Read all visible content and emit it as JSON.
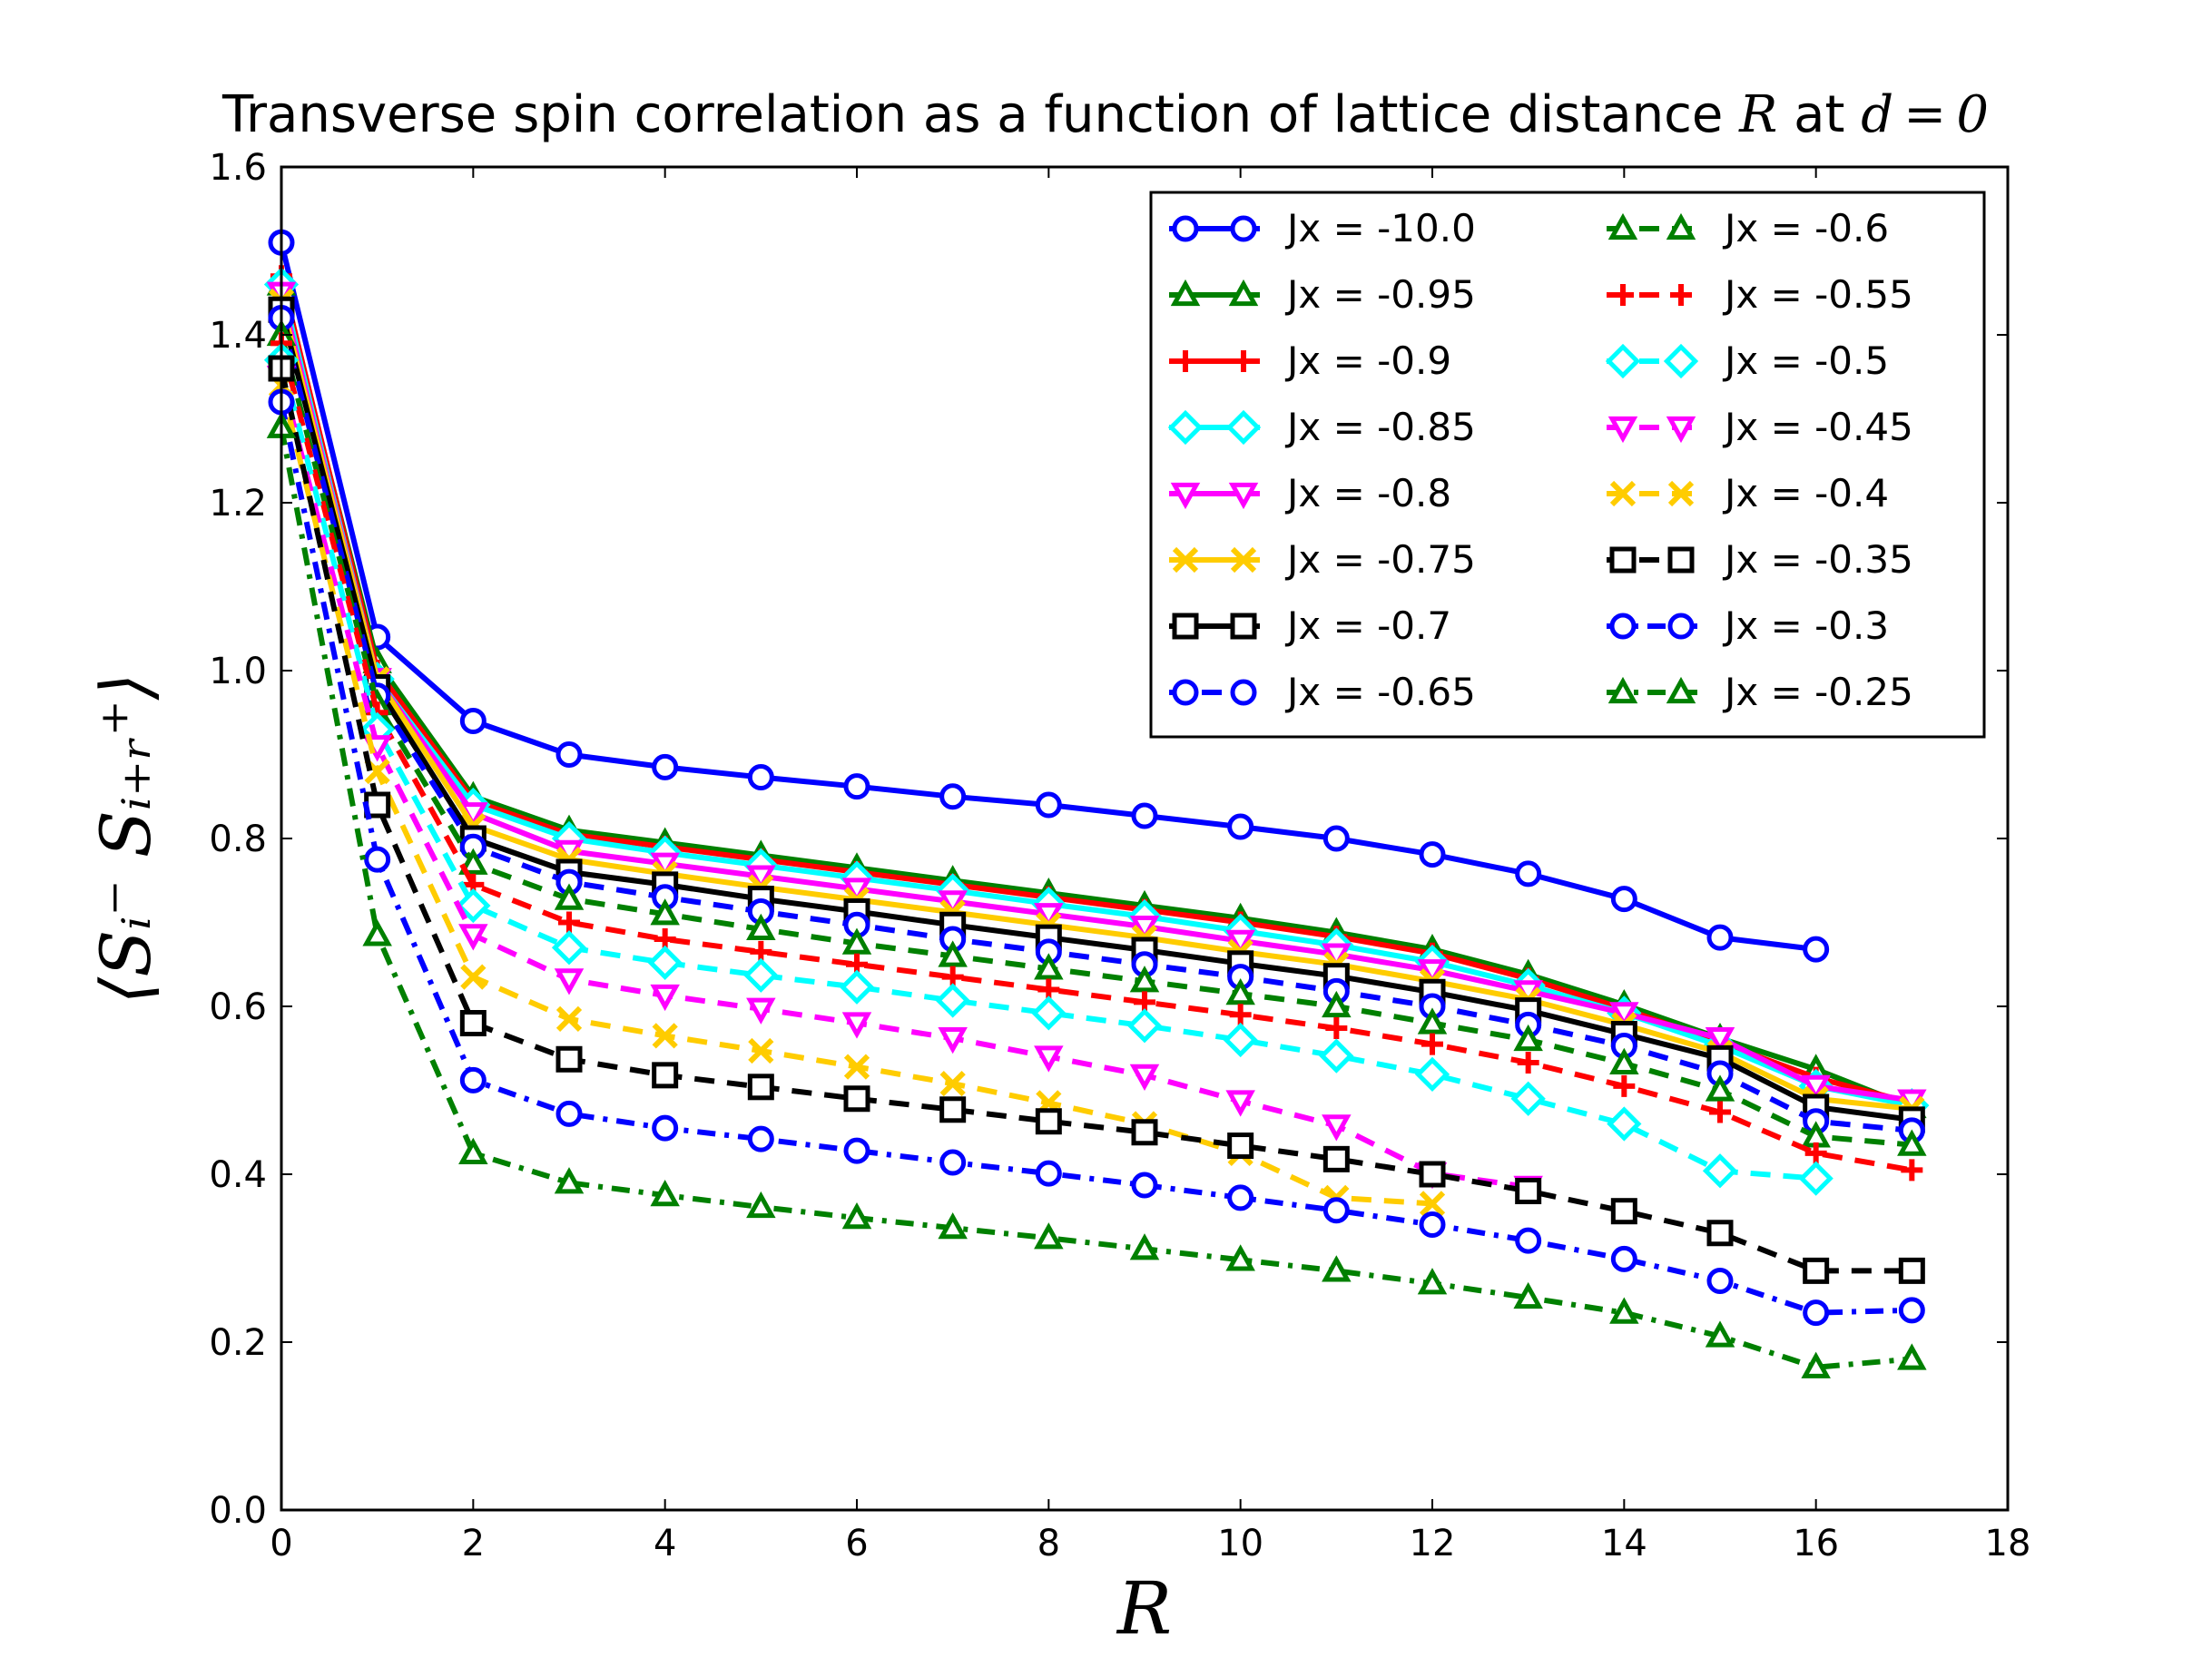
{
  "chart_data": {
    "type": "line",
    "title_prefix": "Transverse spin correlation as a function of lattice distance ",
    "title_var": "R",
    "title_mid": " at ",
    "title_eq": "d = 0",
    "xlabel": "R",
    "ylabel": "⟨Sᵢ⁻ Sᵢ₊ᵣ⁺⟩",
    "xlim": [
      0,
      18
    ],
    "ylim": [
      0.0,
      1.6
    ],
    "xticks": [
      "0",
      "2",
      "4",
      "6",
      "8",
      "10",
      "12",
      "14",
      "16",
      "18"
    ],
    "yticks": [
      "0.0",
      "0.2",
      "0.4",
      "0.6",
      "0.8",
      "1.0",
      "1.2",
      "1.4",
      "1.6"
    ],
    "grid": false,
    "legend_position": "top-right",
    "legend_columns": 2,
    "series": [
      {
        "name": "Jx = -10.0",
        "color": "#0000ff",
        "marker": "circle",
        "dash": "solid",
        "x": [
          0,
          1,
          2,
          3,
          4,
          5,
          6,
          7,
          8,
          9,
          10,
          11,
          12,
          13,
          14,
          15,
          16
        ],
        "values": [
          1.51,
          1.04,
          0.94,
          0.9,
          0.885,
          0.873,
          0.862,
          0.85,
          0.84,
          0.827,
          0.814,
          0.8,
          0.781,
          0.758,
          0.728,
          0.682,
          0.668
        ]
      },
      {
        "name": "Jx = -0.95",
        "color": "#008000",
        "marker": "triangle-up",
        "dash": "solid",
        "x": [
          0,
          1,
          2,
          3,
          4,
          5,
          6,
          7,
          8,
          9,
          10,
          11,
          12,
          13,
          14,
          15,
          16,
          17
        ],
        "values": [
          1.46,
          1.01,
          0.85,
          0.81,
          0.795,
          0.78,
          0.765,
          0.75,
          0.735,
          0.72,
          0.705,
          0.688,
          0.668,
          0.638,
          0.602,
          0.562,
          0.525,
          0.48
        ]
      },
      {
        "name": "Jx = -0.9",
        "color": "#ff0000",
        "marker": "plus",
        "dash": "solid",
        "x": [
          0,
          1,
          2,
          3,
          4,
          5,
          6,
          7,
          8,
          9,
          10,
          11,
          12,
          13,
          14,
          15,
          16,
          17
        ],
        "values": [
          1.47,
          1.0,
          0.845,
          0.805,
          0.79,
          0.775,
          0.76,
          0.745,
          0.73,
          0.715,
          0.7,
          0.683,
          0.663,
          0.633,
          0.597,
          0.557,
          0.515,
          0.485
        ]
      },
      {
        "name": "Jx = -0.85",
        "color": "#00ffff",
        "marker": "diamond",
        "dash": "solid",
        "x": [
          0,
          1,
          2,
          3,
          4,
          5,
          6,
          7,
          8,
          9,
          10,
          11,
          12,
          13,
          14,
          15,
          16,
          17
        ],
        "values": [
          1.46,
          0.99,
          0.84,
          0.8,
          0.783,
          0.768,
          0.753,
          0.738,
          0.722,
          0.707,
          0.69,
          0.673,
          0.653,
          0.625,
          0.592,
          0.553,
          0.505,
          0.482
        ]
      },
      {
        "name": "Jx = -0.8",
        "color": "#ff00ff",
        "marker": "triangle-down",
        "dash": "solid",
        "x": [
          0,
          1,
          2,
          3,
          4,
          5,
          6,
          7,
          8,
          9,
          10,
          11,
          12,
          13,
          14,
          15,
          16,
          17
        ],
        "values": [
          1.45,
          0.99,
          0.83,
          0.785,
          0.77,
          0.755,
          0.74,
          0.725,
          0.71,
          0.695,
          0.678,
          0.662,
          0.643,
          0.618,
          0.592,
          0.562,
          0.505,
          0.488
        ]
      },
      {
        "name": "Jx = -0.75",
        "color": "#ffcc00",
        "marker": "x",
        "dash": "solid",
        "x": [
          0,
          1,
          2,
          3,
          4,
          5,
          6,
          7,
          8,
          9,
          10,
          11,
          12,
          13,
          14,
          15,
          16,
          17
        ],
        "values": [
          1.44,
          0.99,
          0.815,
          0.775,
          0.758,
          0.742,
          0.727,
          0.712,
          0.697,
          0.682,
          0.665,
          0.65,
          0.63,
          0.608,
          0.578,
          0.545,
          0.49,
          0.478
        ]
      },
      {
        "name": "Jx = -0.7",
        "color": "#000000",
        "marker": "square",
        "dash": "solid",
        "x": [
          0,
          1,
          2,
          3,
          4,
          5,
          6,
          7,
          8,
          9,
          10,
          11,
          12,
          13,
          14,
          15,
          16,
          17
        ],
        "values": [
          1.43,
          0.98,
          0.8,
          0.76,
          0.745,
          0.728,
          0.713,
          0.697,
          0.682,
          0.667,
          0.651,
          0.636,
          0.617,
          0.595,
          0.567,
          0.538,
          0.48,
          0.465
        ]
      },
      {
        "name": "Jx = -0.65",
        "color": "#0000ff",
        "marker": "circle",
        "dash": "dashed",
        "x": [
          0,
          1,
          2,
          3,
          4,
          5,
          6,
          7,
          8,
          9,
          10,
          11,
          12,
          13,
          14,
          15,
          16,
          17
        ],
        "values": [
          1.42,
          0.97,
          0.79,
          0.748,
          0.73,
          0.713,
          0.697,
          0.68,
          0.665,
          0.65,
          0.635,
          0.618,
          0.6,
          0.578,
          0.553,
          0.52,
          0.463,
          0.452
        ]
      },
      {
        "name": "Jx = -0.6",
        "color": "#008000",
        "marker": "triangle-up",
        "dash": "dashed",
        "x": [
          0,
          1,
          2,
          3,
          4,
          5,
          6,
          7,
          8,
          9,
          10,
          11,
          12,
          13,
          14,
          15,
          16,
          17
        ],
        "values": [
          1.4,
          0.96,
          0.77,
          0.728,
          0.71,
          0.692,
          0.675,
          0.66,
          0.645,
          0.63,
          0.615,
          0.6,
          0.58,
          0.56,
          0.532,
          0.5,
          0.445,
          0.435
        ]
      },
      {
        "name": "Jx = -0.55",
        "color": "#ff0000",
        "marker": "plus",
        "dash": "dashed",
        "x": [
          0,
          1,
          2,
          3,
          4,
          5,
          6,
          7,
          8,
          9,
          10,
          11,
          12,
          13,
          14,
          15,
          16,
          17
        ],
        "values": [
          1.39,
          0.95,
          0.745,
          0.7,
          0.68,
          0.665,
          0.65,
          0.635,
          0.62,
          0.605,
          0.59,
          0.574,
          0.555,
          0.533,
          0.505,
          0.474,
          0.425,
          0.405
        ]
      },
      {
        "name": "Jx = -0.5",
        "color": "#00ffff",
        "marker": "diamond",
        "dash": "dashed",
        "x": [
          0,
          1,
          2,
          3,
          4,
          5,
          6,
          7,
          8,
          9,
          10,
          11,
          12,
          13,
          14,
          15,
          16
        ],
        "values": [
          1.37,
          0.93,
          0.72,
          0.67,
          0.652,
          0.637,
          0.623,
          0.607,
          0.592,
          0.577,
          0.56,
          0.541,
          0.519,
          0.49,
          0.46,
          0.404,
          0.395
        ]
      },
      {
        "name": "Jx = -0.45",
        "color": "#ff00ff",
        "marker": "triangle-down",
        "dash": "dashed",
        "x": [
          0,
          1,
          2,
          3,
          4,
          5,
          6,
          7,
          8,
          9,
          10,
          11,
          12,
          13
        ],
        "values": [
          1.35,
          0.91,
          0.685,
          0.632,
          0.613,
          0.597,
          0.58,
          0.562,
          0.54,
          0.518,
          0.487,
          0.458,
          0.401,
          0.385
        ]
      },
      {
        "name": "Jx = -0.4",
        "color": "#ffcc00",
        "marker": "x",
        "dash": "dashed",
        "x": [
          0,
          1,
          2,
          3,
          4,
          5,
          6,
          7,
          8,
          9,
          10,
          11,
          12
        ],
        "values": [
          1.34,
          0.88,
          0.635,
          0.585,
          0.565,
          0.547,
          0.528,
          0.508,
          0.485,
          0.46,
          0.425,
          0.372,
          0.365
        ]
      },
      {
        "name": "Jx = -0.35",
        "color": "#000000",
        "marker": "square",
        "dash": "dashed",
        "x": [
          0,
          1,
          2,
          3,
          4,
          5,
          6,
          7,
          8,
          9,
          10,
          11,
          12,
          13,
          14,
          15,
          16,
          17
        ],
        "values": [
          1.36,
          0.84,
          0.58,
          0.537,
          0.518,
          0.504,
          0.49,
          0.477,
          0.463,
          0.45,
          0.434,
          0.418,
          0.4,
          0.38,
          0.356,
          0.33,
          0.285,
          0.285
        ]
      },
      {
        "name": "Jx = -0.3",
        "color": "#0000ff",
        "marker": "circle",
        "dash": "dashdot",
        "x": [
          0,
          1,
          2,
          3,
          4,
          5,
          6,
          7,
          8,
          9,
          10,
          11,
          12,
          13,
          14,
          15,
          16,
          17
        ],
        "values": [
          1.32,
          0.775,
          0.512,
          0.472,
          0.455,
          0.442,
          0.428,
          0.414,
          0.401,
          0.387,
          0.372,
          0.357,
          0.34,
          0.321,
          0.299,
          0.273,
          0.235,
          0.238
        ]
      },
      {
        "name": "Jx = -0.25",
        "color": "#008000",
        "marker": "triangle-up",
        "dash": "dashdot",
        "x": [
          0,
          1,
          2,
          3,
          4,
          5,
          6,
          7,
          8,
          9,
          10,
          11,
          12,
          13,
          14,
          15,
          16,
          17
        ],
        "values": [
          1.29,
          0.685,
          0.425,
          0.39,
          0.375,
          0.361,
          0.348,
          0.336,
          0.324,
          0.311,
          0.298,
          0.285,
          0.27,
          0.253,
          0.235,
          0.207,
          0.17,
          0.18
        ]
      }
    ]
  }
}
